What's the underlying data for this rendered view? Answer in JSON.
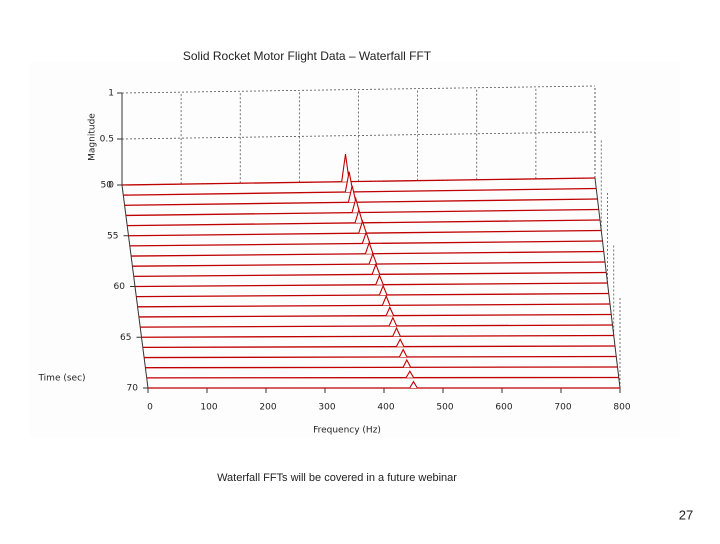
{
  "title": "Solid Rocket Motor Flight Data – Waterfall FFT",
  "caption": "Waterfall FFTs will be covered in a future webinar",
  "page_number": 27,
  "chart_data": {
    "type": "waterfall",
    "x_label": "Frequency (Hz)",
    "y_label": "Time (sec)",
    "z_label": "Magnitude",
    "xlim": [
      0,
      800
    ],
    "xticks": [
      0,
      100,
      200,
      300,
      400,
      500,
      600,
      700,
      800
    ],
    "ylim": [
      50,
      70
    ],
    "yticks": [
      50,
      55,
      60,
      65,
      70
    ],
    "zlim": [
      0,
      1
    ],
    "zticks": [
      0,
      0.5,
      1
    ],
    "color": "#c00000",
    "grid": true,
    "time": [
      50,
      51,
      52,
      53,
      54,
      55,
      56,
      57,
      58,
      59,
      60,
      61,
      62,
      63,
      64,
      65,
      66,
      67,
      68,
      69,
      70
    ],
    "peak_frequency": [
      378,
      382,
      385,
      389,
      392,
      396,
      400,
      403,
      407,
      410,
      414,
      418,
      421,
      425,
      428,
      432,
      436,
      439,
      443,
      446,
      450
    ],
    "peak_magnitude": [
      0.3,
      0.22,
      0.18,
      0.15,
      0.14,
      0.13,
      0.12,
      0.12,
      0.11,
      0.11,
      0.1,
      0.1,
      0.1,
      0.09,
      0.09,
      0.09,
      0.08,
      0.08,
      0.08,
      0.07,
      0.07
    ]
  }
}
